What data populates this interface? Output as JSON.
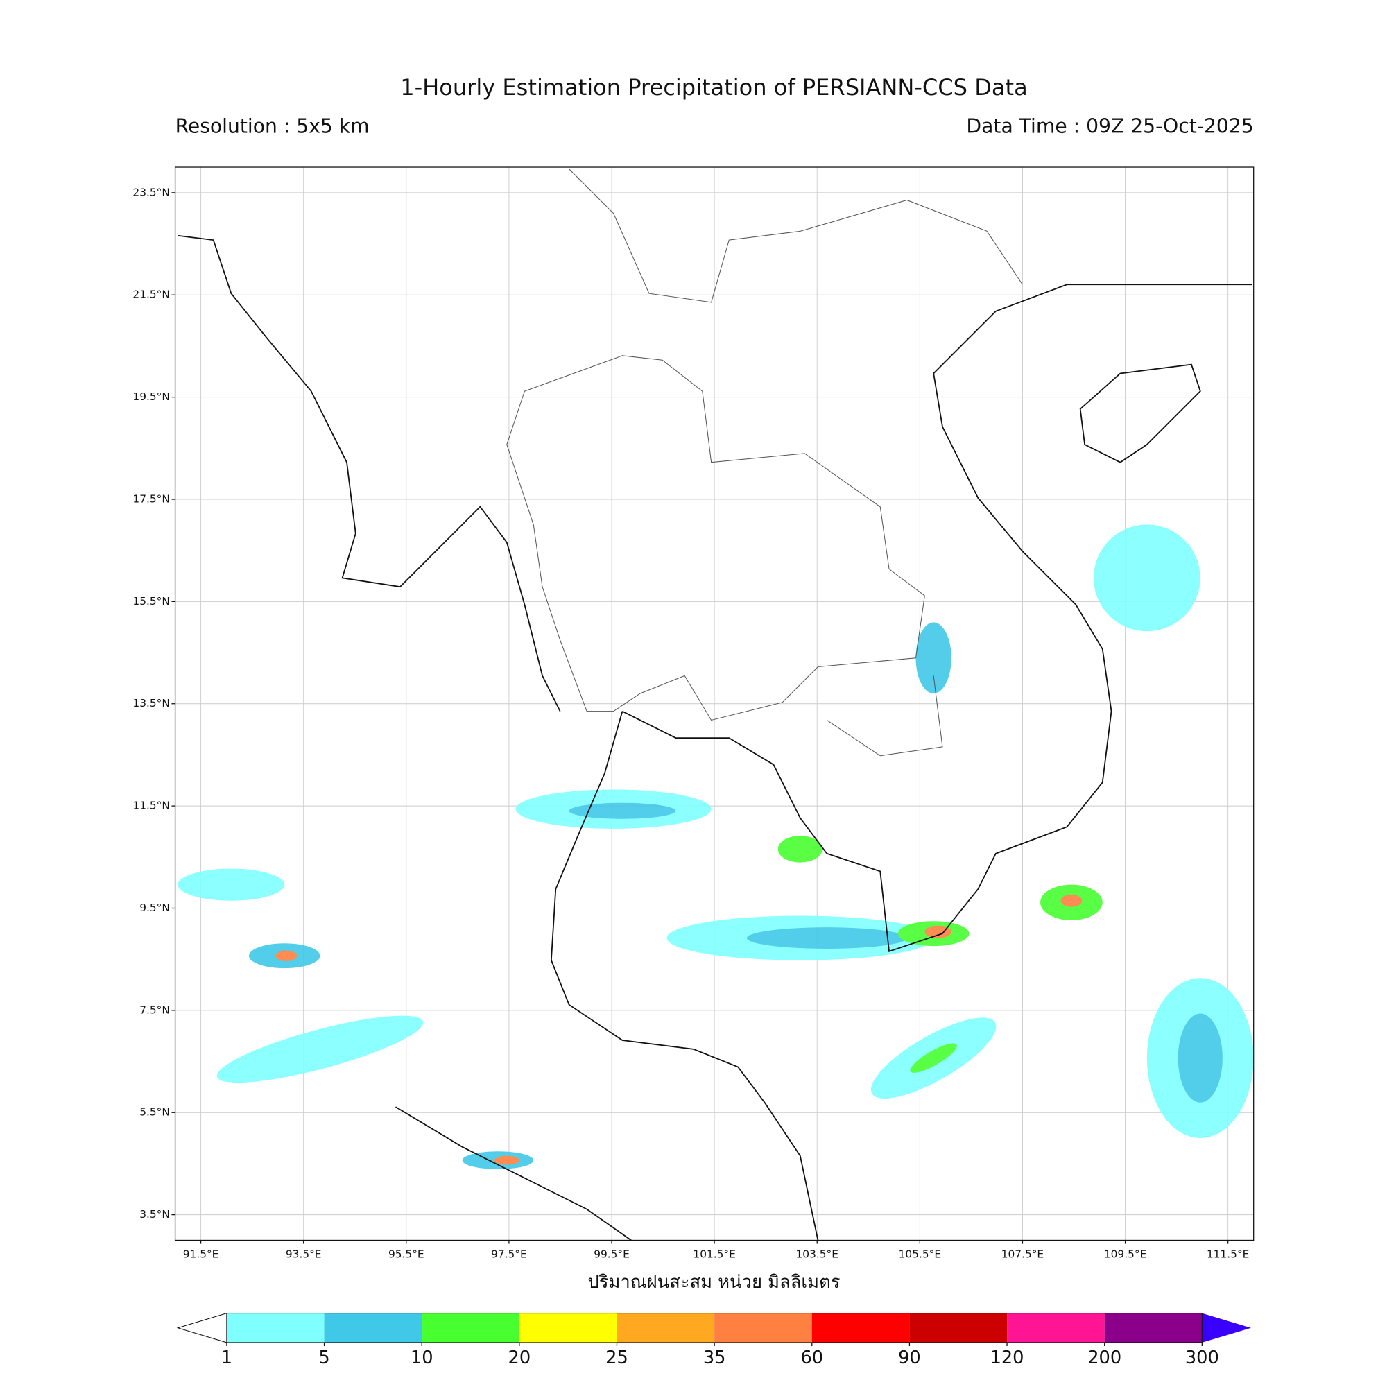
{
  "chart_data": {
    "type": "map",
    "title": "1-Hourly Estimation Precipitation of PERSIANN-CCS Data",
    "subtitle_left": "Resolution : 5x5 km",
    "subtitle_right": "Data Time : 09Z 25-Oct-2025",
    "xlabel": "ปริมาณฝนสะสม หน่วย มิลลิเมตร",
    "xlim": [
      91,
      112
    ],
    "ylim": [
      3,
      24
    ],
    "grid": true,
    "xticks": [
      {
        "value": 91.5,
        "label": "91.5°E"
      },
      {
        "value": 93.5,
        "label": "93.5°E"
      },
      {
        "value": 95.5,
        "label": "95.5°E"
      },
      {
        "value": 97.5,
        "label": "97.5°E"
      },
      {
        "value": 99.5,
        "label": "99.5°E"
      },
      {
        "value": 101.5,
        "label": "101.5°E"
      },
      {
        "value": 103.5,
        "label": "103.5°E"
      },
      {
        "value": 105.5,
        "label": "105.5°E"
      },
      {
        "value": 107.5,
        "label": "107.5°E"
      },
      {
        "value": 109.5,
        "label": "109.5°E"
      },
      {
        "value": 111.5,
        "label": "111.5°E"
      }
    ],
    "yticks": [
      {
        "value": 3.5,
        "label": "3.5°N"
      },
      {
        "value": 5.5,
        "label": "5.5°N"
      },
      {
        "value": 7.5,
        "label": "7.5°N"
      },
      {
        "value": 9.5,
        "label": "9.5°N"
      },
      {
        "value": 11.5,
        "label": "11.5°N"
      },
      {
        "value": 13.5,
        "label": "13.5°N"
      },
      {
        "value": 15.5,
        "label": "15.5°N"
      },
      {
        "value": 17.5,
        "label": "17.5°N"
      },
      {
        "value": 19.5,
        "label": "19.5°N"
      },
      {
        "value": 21.5,
        "label": "21.5°N"
      },
      {
        "value": 23.5,
        "label": "23.5°N"
      }
    ],
    "colorbar": {
      "levels": [
        1,
        5,
        10,
        20,
        25,
        35,
        60,
        90,
        120,
        200,
        300
      ],
      "colors": [
        "#80ffff",
        "#40c8e8",
        "#48ff30",
        "#ffff00",
        "#ffa820",
        "#ff8040",
        "#ff0000",
        "#cc0000",
        "#ff1493",
        "#8b008b"
      ],
      "under_color": "#ffffff",
      "over_color": "#3a00ff"
    }
  }
}
